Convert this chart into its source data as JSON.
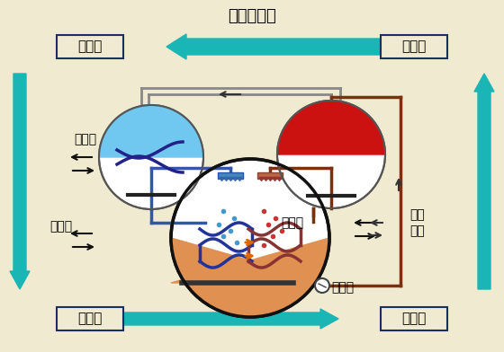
{
  "bg_color": "#f0ead0",
  "teal": "#1ab5b5",
  "dark_blue": "#1a3060",
  "red_fill": "#cc1111",
  "blue_fill": "#70c8f0",
  "tan_fill": "#e09050",
  "brown_pipe": "#7b3010",
  "coil_blue": "#223399",
  "coil_red": "#883333",
  "title": "制冷剂蒸汽",
  "lnq": "冷凝器",
  "fsg": "发生器",
  "zvq": "蒸发器",
  "xsq": "吸收器",
  "lqs_top": "冷却水",
  "lms": "冷媒水",
  "lqs_right": "冷却水",
  "rlq": "溶液泵",
  "qdrq": "驱动\n热源"
}
